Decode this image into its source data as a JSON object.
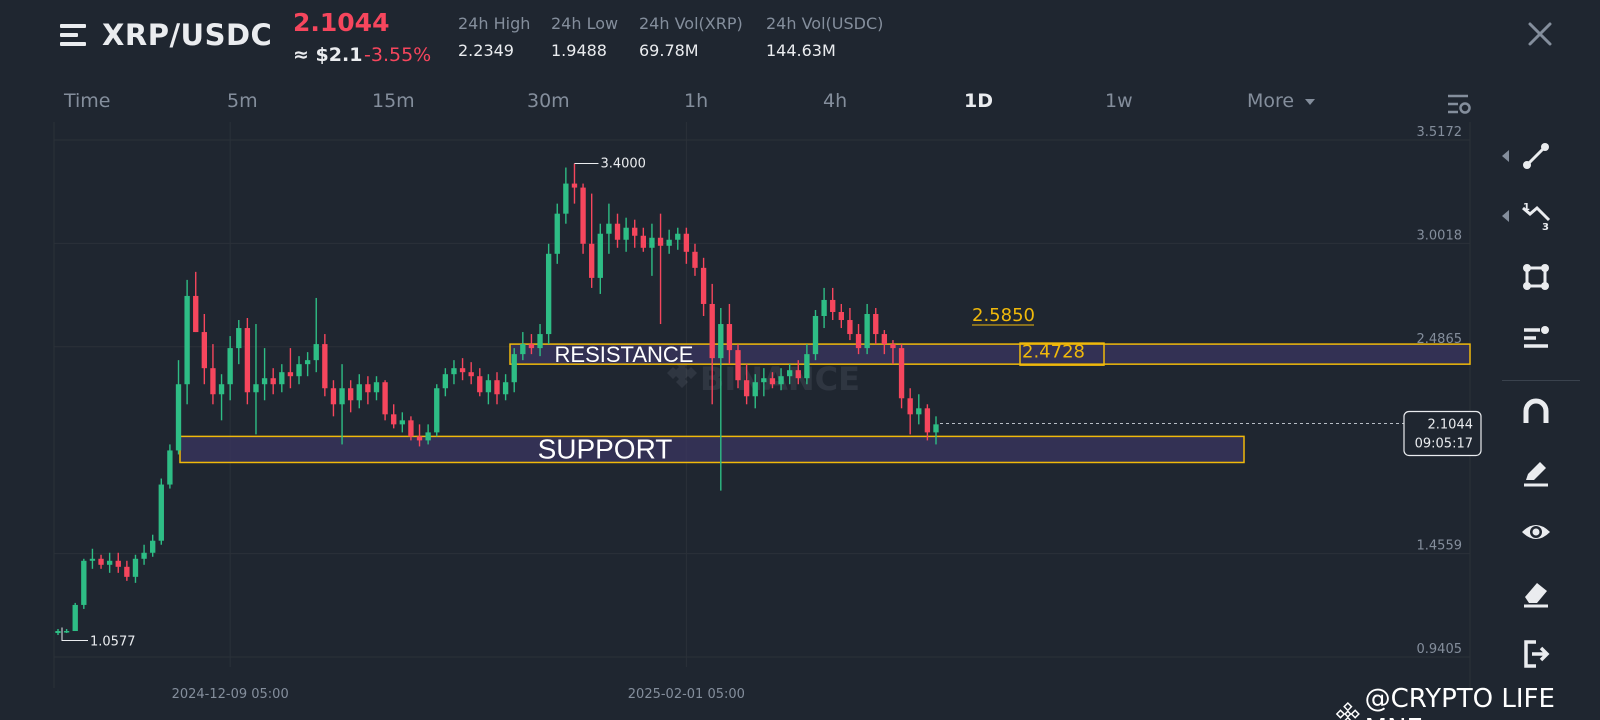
{
  "header": {
    "pair": "XRP/USDC",
    "price": "2.1044",
    "approx_usd": "≈ $2.1",
    "change_pct": "-3.55%",
    "stats": [
      {
        "label": "24h High",
        "value": "2.2349"
      },
      {
        "label": "24h Low",
        "value": "1.9488"
      },
      {
        "label": "24h Vol(XRP)",
        "value": "69.78M"
      },
      {
        "label": "24h Vol(USDC)",
        "value": "144.63M"
      }
    ]
  },
  "tabs": [
    {
      "label": "Time"
    },
    {
      "label": "5m"
    },
    {
      "label": "15m"
    },
    {
      "label": "30m"
    },
    {
      "label": "1h"
    },
    {
      "label": "4h"
    },
    {
      "label": "1D",
      "active": true
    },
    {
      "label": "1w"
    },
    {
      "label": "More"
    }
  ],
  "chart": {
    "y_axis_labels": [
      "3.5172",
      "3.0018",
      "2.4865",
      "1.4559",
      "0.9405"
    ],
    "x_axis_labels": [
      "2024-12-09 05:00",
      "2025-02-01 05:00"
    ],
    "current_price": "2.1044",
    "countdown": "09:05:17",
    "high_marker": "3.4000",
    "low_marker": "1.0577",
    "resistance_label": "RESISTANCE",
    "support_label": "SUPPORT",
    "level_1": "2.5850",
    "level_2": "2.4728",
    "exchange_watermark": "BINANCE",
    "colors": {
      "up": "#2ebd85",
      "down": "#f6465d",
      "zone_border": "#f0b90b",
      "zone_fill": "#3b3560",
      "level_text": "#f0b90b"
    }
  },
  "chart_data": {
    "type": "candlestick",
    "interval": "1D",
    "pair": "XRP/USDC",
    "ylim": [
      0.9405,
      3.5172
    ],
    "y_ticks": [
      3.5172,
      3.0018,
      2.4865,
      1.4559,
      0.9405
    ],
    "x_ticks": [
      "2024-12-09 05:00",
      "2025-02-01 05:00"
    ],
    "grid": true,
    "high": 3.4,
    "low": 1.0577,
    "last": 2.1044,
    "resistance_zone": [
      2.4,
      2.5
    ],
    "support_zone": [
      1.91,
      2.04
    ],
    "horizontal_levels": [
      2.585,
      2.4728
    ],
    "ohlc": [
      [
        1.06,
        1.08,
        1.05,
        1.07
      ],
      [
        1.07,
        1.08,
        1.06,
        1.07
      ],
      [
        1.07,
        1.21,
        1.07,
        1.2
      ],
      [
        1.2,
        1.43,
        1.18,
        1.42
      ],
      [
        1.42,
        1.48,
        1.38,
        1.43
      ],
      [
        1.43,
        1.45,
        1.38,
        1.4
      ],
      [
        1.4,
        1.46,
        1.36,
        1.42
      ],
      [
        1.42,
        1.46,
        1.36,
        1.39
      ],
      [
        1.39,
        1.42,
        1.32,
        1.34
      ],
      [
        1.34,
        1.45,
        1.31,
        1.43
      ],
      [
        1.43,
        1.5,
        1.4,
        1.46
      ],
      [
        1.46,
        1.55,
        1.44,
        1.52
      ],
      [
        1.52,
        1.83,
        1.5,
        1.8
      ],
      [
        1.8,
        2.0,
        1.78,
        1.97
      ],
      [
        1.97,
        2.42,
        1.95,
        2.3
      ],
      [
        2.3,
        2.82,
        2.2,
        2.74
      ],
      [
        2.74,
        2.86,
        2.56,
        2.56
      ],
      [
        2.56,
        2.65,
        2.3,
        2.38
      ],
      [
        2.38,
        2.5,
        2.2,
        2.25
      ],
      [
        2.25,
        2.35,
        2.12,
        2.3
      ],
      [
        2.3,
        2.54,
        2.22,
        2.48
      ],
      [
        2.48,
        2.62,
        2.4,
        2.58
      ],
      [
        2.58,
        2.63,
        2.2,
        2.26
      ],
      [
        2.26,
        2.6,
        2.05,
        2.3
      ],
      [
        2.3,
        2.48,
        2.22,
        2.33
      ],
      [
        2.33,
        2.38,
        2.25,
        2.3
      ],
      [
        2.3,
        2.4,
        2.26,
        2.36
      ],
      [
        2.36,
        2.48,
        2.28,
        2.34
      ],
      [
        2.34,
        2.44,
        2.3,
        2.4
      ],
      [
        2.4,
        2.46,
        2.34,
        2.42
      ],
      [
        2.42,
        2.73,
        2.36,
        2.5
      ],
      [
        2.5,
        2.55,
        2.24,
        2.28
      ],
      [
        2.28,
        2.32,
        2.14,
        2.2
      ],
      [
        2.2,
        2.4,
        2.0,
        2.28
      ],
      [
        2.28,
        2.32,
        2.16,
        2.22
      ],
      [
        2.22,
        2.35,
        2.18,
        2.3
      ],
      [
        2.3,
        2.34,
        2.2,
        2.26
      ],
      [
        2.26,
        2.34,
        2.22,
        2.31
      ],
      [
        2.31,
        2.32,
        2.12,
        2.15
      ],
      [
        2.15,
        2.2,
        2.08,
        2.1
      ],
      [
        2.1,
        2.16,
        2.06,
        2.12
      ],
      [
        2.12,
        2.14,
        2.02,
        2.04
      ],
      [
        2.04,
        2.1,
        1.99,
        2.02
      ],
      [
        2.02,
        2.1,
        2.0,
        2.06
      ],
      [
        2.06,
        2.3,
        2.04,
        2.28
      ],
      [
        2.28,
        2.38,
        2.24,
        2.35
      ],
      [
        2.35,
        2.42,
        2.3,
        2.38
      ],
      [
        2.38,
        2.43,
        2.32,
        2.36
      ],
      [
        2.36,
        2.41,
        2.3,
        2.34
      ],
      [
        2.34,
        2.38,
        2.24,
        2.26
      ],
      [
        2.26,
        2.35,
        2.2,
        2.32
      ],
      [
        2.32,
        2.36,
        2.2,
        2.25
      ],
      [
        2.25,
        2.35,
        2.22,
        2.31
      ],
      [
        2.31,
        2.48,
        2.26,
        2.45
      ],
      [
        2.45,
        2.56,
        2.42,
        2.5
      ],
      [
        2.5,
        2.55,
        2.45,
        2.48
      ],
      [
        2.48,
        2.6,
        2.44,
        2.55
      ],
      [
        2.55,
        3.0,
        2.5,
        2.95
      ],
      [
        2.95,
        3.2,
        2.9,
        3.15
      ],
      [
        3.15,
        3.38,
        3.1,
        3.3
      ],
      [
        3.3,
        3.4,
        3.2,
        3.28
      ],
      [
        3.28,
        3.3,
        2.95,
        3.0
      ],
      [
        3.0,
        3.25,
        2.78,
        2.83
      ],
      [
        2.83,
        3.1,
        2.75,
        3.05
      ],
      [
        3.05,
        3.2,
        2.95,
        3.1
      ],
      [
        3.1,
        3.15,
        2.98,
        3.02
      ],
      [
        3.02,
        3.13,
        2.96,
        3.08
      ],
      [
        3.08,
        3.12,
        2.98,
        3.04
      ],
      [
        3.04,
        3.08,
        2.96,
        2.98
      ],
      [
        2.98,
        3.1,
        2.84,
        3.03
      ],
      [
        3.03,
        3.15,
        2.6,
        2.99
      ],
      [
        2.99,
        3.07,
        2.95,
        3.02
      ],
      [
        3.02,
        3.08,
        2.97,
        3.05
      ],
      [
        3.05,
        3.08,
        2.9,
        2.96
      ],
      [
        2.96,
        3.0,
        2.84,
        2.88
      ],
      [
        2.88,
        2.93,
        2.64,
        2.7
      ],
      [
        2.7,
        2.8,
        2.2,
        2.43
      ],
      [
        2.43,
        2.68,
        1.77,
        2.6
      ],
      [
        2.6,
        2.7,
        2.4,
        2.47
      ],
      [
        2.47,
        2.5,
        2.28,
        2.32
      ],
      [
        2.32,
        2.4,
        2.2,
        2.24
      ],
      [
        2.24,
        2.35,
        2.18,
        2.31
      ],
      [
        2.31,
        2.38,
        2.24,
        2.33
      ],
      [
        2.33,
        2.36,
        2.28,
        2.3
      ],
      [
        2.3,
        2.38,
        2.27,
        2.34
      ],
      [
        2.34,
        2.4,
        2.3,
        2.37
      ],
      [
        2.37,
        2.42,
        2.3,
        2.33
      ],
      [
        2.33,
        2.5,
        2.3,
        2.45
      ],
      [
        2.45,
        2.67,
        2.42,
        2.64
      ],
      [
        2.64,
        2.78,
        2.58,
        2.72
      ],
      [
        2.72,
        2.78,
        2.62,
        2.66
      ],
      [
        2.66,
        2.7,
        2.58,
        2.62
      ],
      [
        2.62,
        2.68,
        2.52,
        2.55
      ],
      [
        2.55,
        2.6,
        2.45,
        2.48
      ],
      [
        2.48,
        2.7,
        2.45,
        2.65
      ],
      [
        2.65,
        2.68,
        2.5,
        2.55
      ],
      [
        2.55,
        2.57,
        2.45,
        2.5
      ],
      [
        2.5,
        2.52,
        2.4,
        2.48
      ],
      [
        2.48,
        2.5,
        2.18,
        2.23
      ],
      [
        2.23,
        2.28,
        2.05,
        2.15
      ],
      [
        2.15,
        2.25,
        2.1,
        2.18
      ],
      [
        2.18,
        2.2,
        2.02,
        2.06
      ],
      [
        2.06,
        2.14,
        2.0,
        2.1
      ]
    ]
  },
  "sidebar_tools": [
    {
      "name": "trendline-tool-icon",
      "has_expander": true
    },
    {
      "name": "fibonacci-tool-icon",
      "has_expander": true
    },
    {
      "name": "rectangle-tool-icon",
      "has_expander": false
    },
    {
      "name": "text-align-tool-icon",
      "has_expander": false
    },
    {
      "name": "magnet-icon",
      "has_expander": false
    },
    {
      "name": "pencil-icon",
      "has_expander": false
    },
    {
      "name": "eye-icon",
      "has_expander": false
    },
    {
      "name": "eraser-icon",
      "has_expander": false
    },
    {
      "name": "exit-icon",
      "has_expander": false
    }
  ],
  "watermark_credit": "@CRYPTO LIFE MNE"
}
